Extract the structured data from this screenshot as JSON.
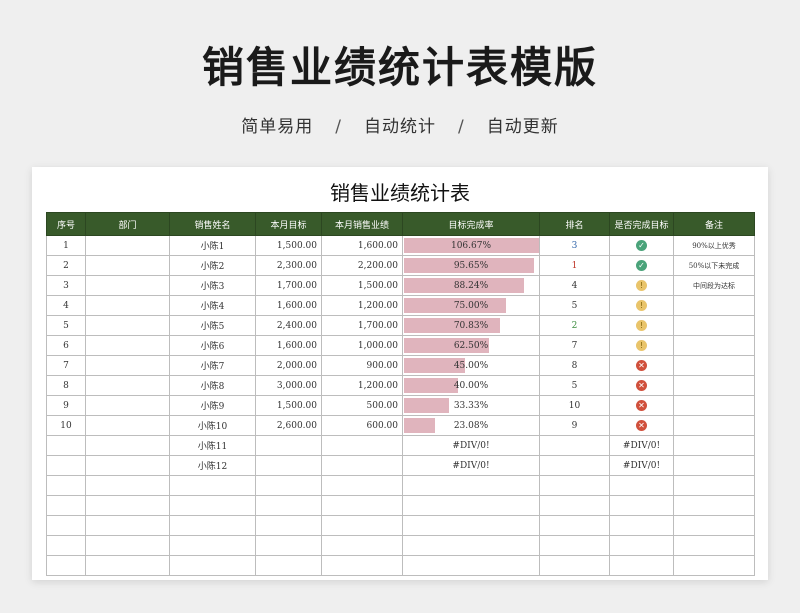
{
  "banner": {
    "title": "销售业绩统计表模版",
    "features": [
      "简单易用",
      "自动统计",
      "自动更新"
    ],
    "separator": "/"
  },
  "sheet": {
    "title": "销售业绩统计表",
    "headers": [
      "序号",
      "部门",
      "销售姓名",
      "本月目标",
      "本月销售业绩",
      "目标完成率",
      "排名",
      "是否完成目标",
      "备注"
    ],
    "rows": [
      {
        "no": "1",
        "dept": "",
        "name": "小陈1",
        "target": "1,500.00",
        "sales": "1,600.00",
        "rate": "106.67%",
        "rate_value": 1.0667,
        "rank": "3",
        "status": "complete",
        "note": "90%以上优秀"
      },
      {
        "no": "2",
        "dept": "",
        "name": "小陈2",
        "target": "2,300.00",
        "sales": "2,200.00",
        "rate": "95.65%",
        "rate_value": 0.9565,
        "rank": "1",
        "status": "complete",
        "note": "50%以下未完成"
      },
      {
        "no": "3",
        "dept": "",
        "name": "小陈3",
        "target": "1,700.00",
        "sales": "1,500.00",
        "rate": "88.24%",
        "rate_value": 0.8824,
        "rank": "4",
        "status": "partial",
        "note": "中间段为达标"
      },
      {
        "no": "4",
        "dept": "",
        "name": "小陈4",
        "target": "1,600.00",
        "sales": "1,200.00",
        "rate": "75.00%",
        "rate_value": 0.75,
        "rank": "5",
        "status": "partial",
        "note": ""
      },
      {
        "no": "5",
        "dept": "",
        "name": "小陈5",
        "target": "2,400.00",
        "sales": "1,700.00",
        "rate": "70.83%",
        "rate_value": 0.7083,
        "rank": "2",
        "status": "partial",
        "note": ""
      },
      {
        "no": "6",
        "dept": "",
        "name": "小陈6",
        "target": "1,600.00",
        "sales": "1,000.00",
        "rate": "62.50%",
        "rate_value": 0.625,
        "rank": "7",
        "status": "partial",
        "note": ""
      },
      {
        "no": "7",
        "dept": "",
        "name": "小陈7",
        "target": "2,000.00",
        "sales": "900.00",
        "rate": "45.00%",
        "rate_value": 0.45,
        "rank": "8",
        "status": "incomplete",
        "note": ""
      },
      {
        "no": "8",
        "dept": "",
        "name": "小陈8",
        "target": "3,000.00",
        "sales": "1,200.00",
        "rate": "40.00%",
        "rate_value": 0.4,
        "rank": "5",
        "status": "incomplete",
        "note": ""
      },
      {
        "no": "9",
        "dept": "",
        "name": "小陈9",
        "target": "1,500.00",
        "sales": "500.00",
        "rate": "33.33%",
        "rate_value": 0.3333,
        "rank": "10",
        "status": "incomplete",
        "note": ""
      },
      {
        "no": "10",
        "dept": "",
        "name": "小陈10",
        "target": "2,600.00",
        "sales": "600.00",
        "rate": "23.08%",
        "rate_value": 0.2308,
        "rank": "9",
        "status": "incomplete",
        "note": ""
      },
      {
        "no": "",
        "dept": "",
        "name": "小陈11",
        "target": "",
        "sales": "",
        "rate": "#DIV/0!",
        "rate_value": 0,
        "rank": "",
        "status": "#DIV/0!",
        "note": ""
      },
      {
        "no": "",
        "dept": "",
        "name": "小陈12",
        "target": "",
        "sales": "",
        "rate": "#DIV/0!",
        "rate_value": 0,
        "rank": "",
        "status": "#DIV/0!",
        "note": ""
      },
      {
        "no": "",
        "dept": "",
        "name": "",
        "target": "",
        "sales": "",
        "rate": "",
        "rate_value": 0,
        "rank": "",
        "status": "",
        "note": ""
      },
      {
        "no": "",
        "dept": "",
        "name": "",
        "target": "",
        "sales": "",
        "rate": "",
        "rate_value": 0,
        "rank": "",
        "status": "",
        "note": ""
      },
      {
        "no": "",
        "dept": "",
        "name": "",
        "target": "",
        "sales": "",
        "rate": "",
        "rate_value": 0,
        "rank": "",
        "status": "",
        "note": ""
      },
      {
        "no": "",
        "dept": "",
        "name": "",
        "target": "",
        "sales": "",
        "rate": "",
        "rate_value": 0,
        "rank": "",
        "status": "",
        "note": ""
      },
      {
        "no": "",
        "dept": "",
        "name": "",
        "target": "",
        "sales": "",
        "rate": "",
        "rate_value": 0,
        "rank": "",
        "status": "",
        "note": ""
      }
    ],
    "rank_colors": {
      "1": "#c0392b",
      "2": "#3e8e41",
      "3": "#2d62a8"
    },
    "status_icons": {
      "complete": "check-circle-icon",
      "partial": "exclamation-circle-icon",
      "incomplete": "x-circle-icon"
    },
    "colors": {
      "header_bg": "#385a2a",
      "bar": "#e0b4bd"
    }
  }
}
